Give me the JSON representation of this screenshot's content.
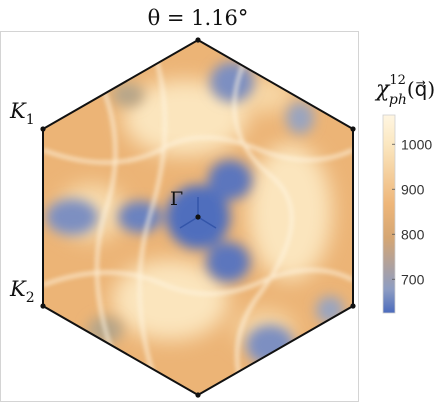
{
  "chart_data": {
    "type": "heatmap",
    "title": "θ = 1.16°",
    "colorbar": {
      "label_main": "χ",
      "label_sup": "12",
      "label_sub": "ph",
      "label_arg": "(q⃗)",
      "ticks": [
        1000,
        900,
        800,
        700
      ],
      "range": [
        625,
        1065
      ],
      "colors": [
        "#4b6bbd",
        "#8e9dc2",
        "#d5a673",
        "#eeb679",
        "#fbe7c0",
        "#fff6e2"
      ]
    },
    "points": {
      "K1": {
        "main": "K",
        "sub": "1"
      },
      "K2": {
        "main": "K",
        "sub": "2"
      },
      "Gamma": "Γ"
    },
    "domain": "hexagonal Brillouin zone"
  }
}
